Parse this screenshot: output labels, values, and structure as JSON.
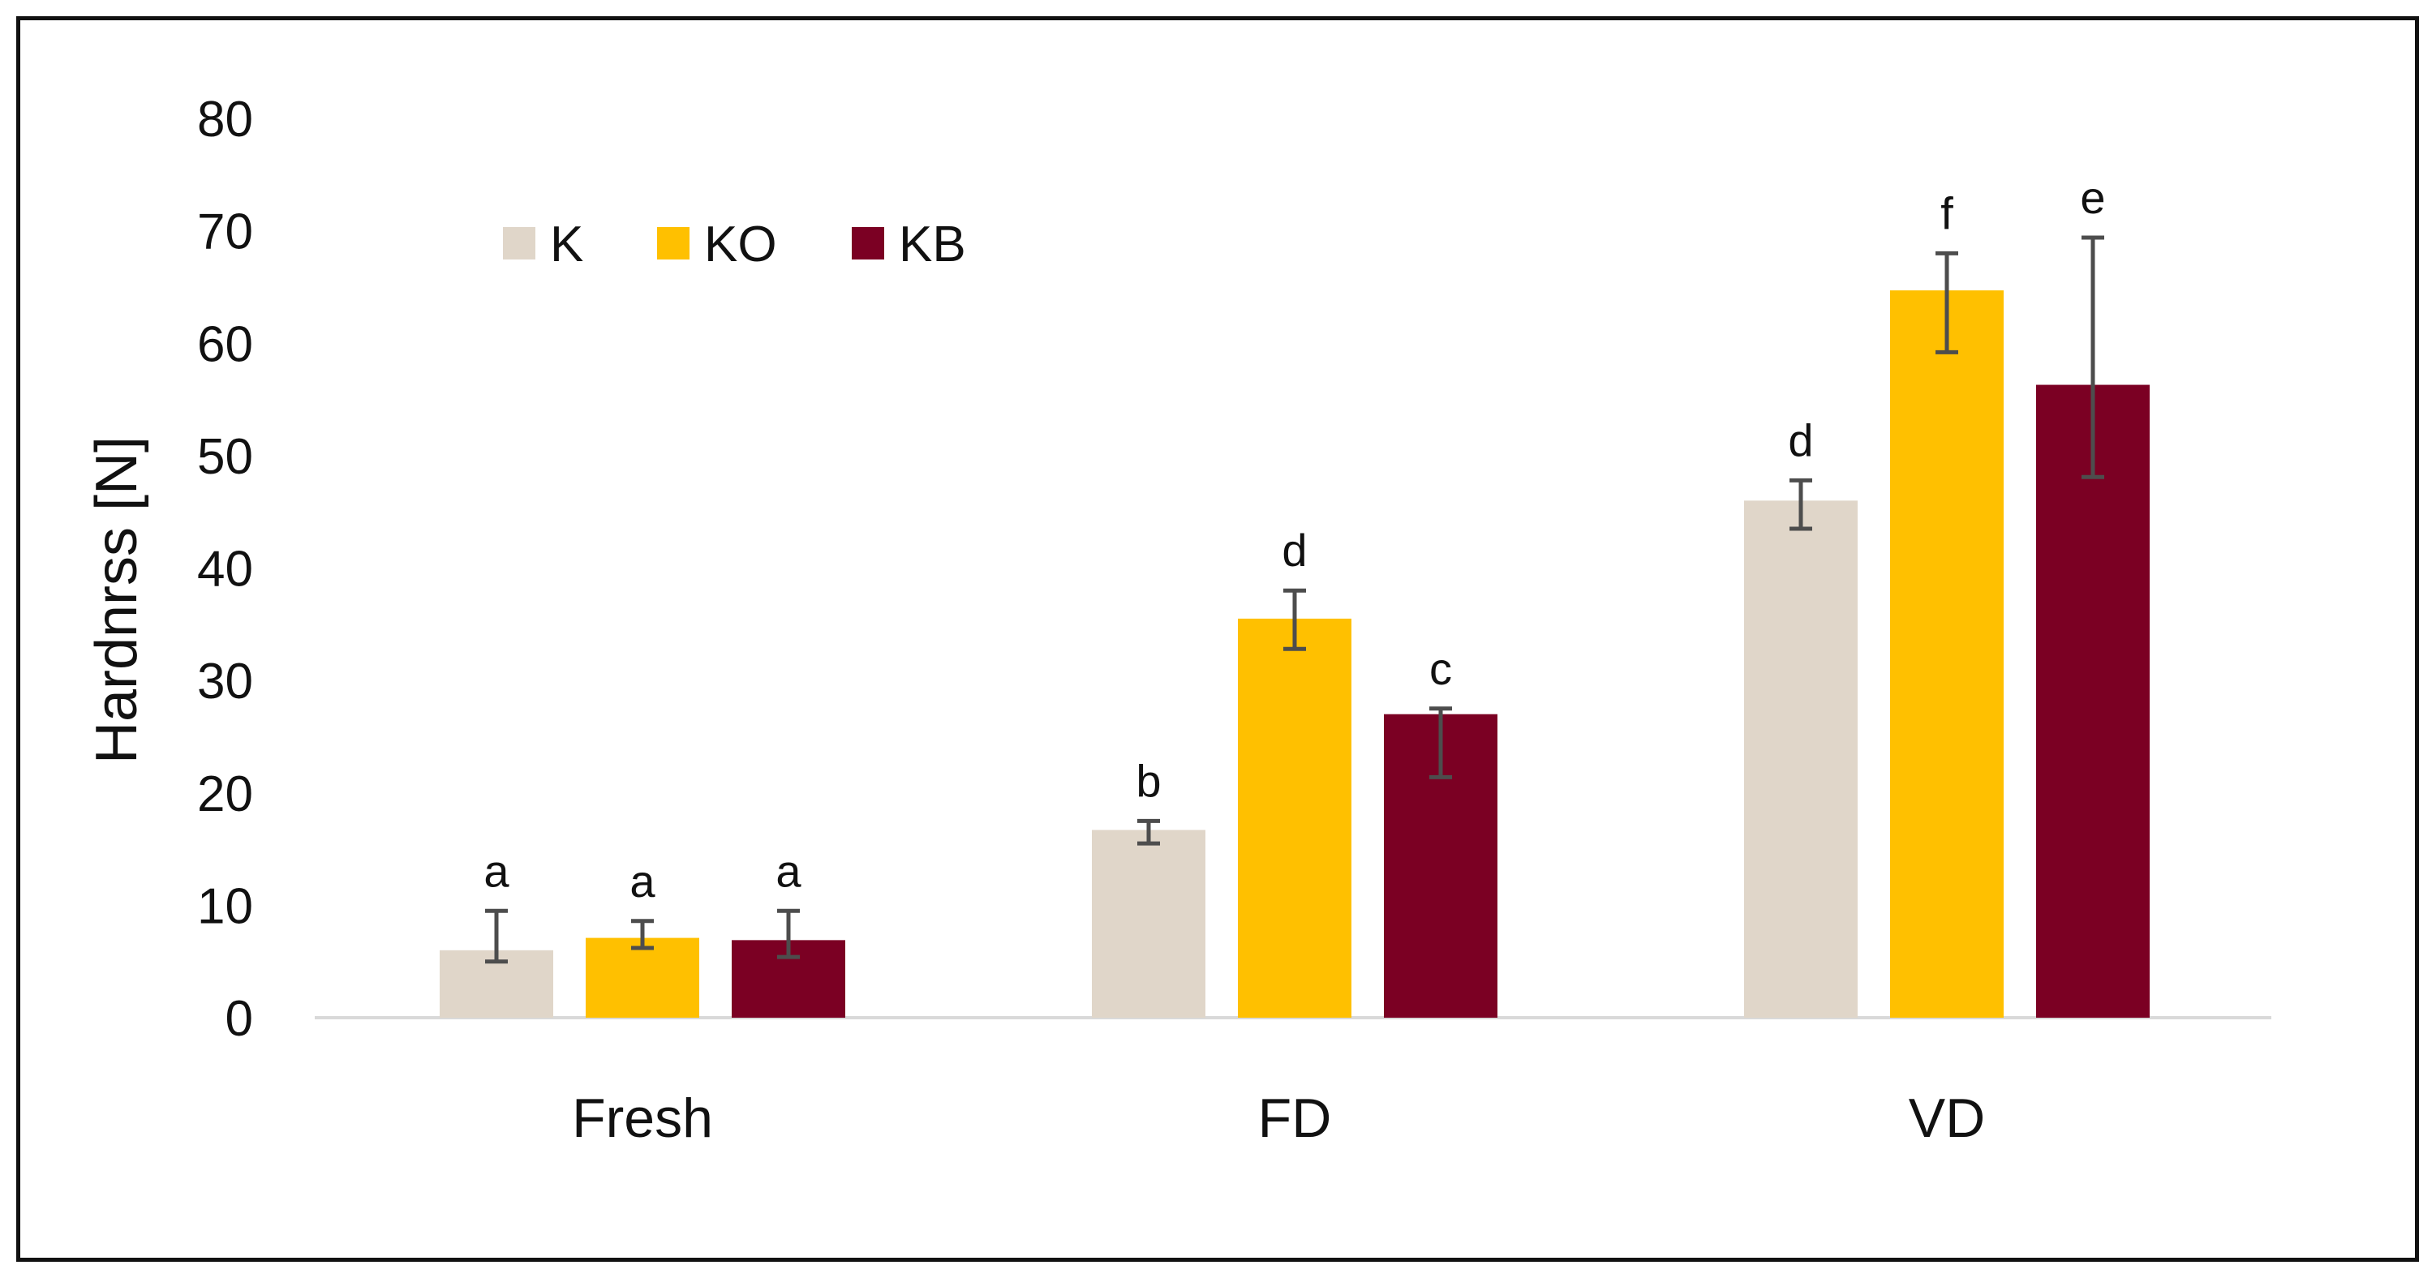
{
  "chart_data": {
    "type": "bar",
    "title": "",
    "xlabel": "",
    "ylabel": "Hardnrss [N]",
    "ylim": [
      0,
      80
    ],
    "yticks": [
      0,
      10,
      20,
      30,
      40,
      50,
      60,
      70,
      80
    ],
    "grid": false,
    "legend_position": "top-left",
    "categories": [
      "Fresh",
      "FD",
      "VD"
    ],
    "series": [
      {
        "name": "K",
        "color": "#e0d6c9",
        "values": [
          6.0,
          16.7,
          46.0
        ],
        "errors": [
          [
            5.0,
            9.5
          ],
          [
            15.5,
            17.5
          ],
          [
            43.5,
            47.8
          ]
        ],
        "labels": [
          "a",
          "b",
          "d"
        ]
      },
      {
        "name": "KO",
        "color": "#ffc000",
        "values": [
          7.1,
          35.5,
          64.7
        ],
        "errors": [
          [
            6.2,
            8.6
          ],
          [
            32.8,
            38.0
          ],
          [
            59.2,
            68.0
          ]
        ],
        "labels": [
          "a",
          "d",
          "f"
        ]
      },
      {
        "name": "KB",
        "color": "#7b0023",
        "values": [
          6.9,
          27.0,
          56.3
        ],
        "errors": [
          [
            5.4,
            9.5
          ],
          [
            21.4,
            27.5
          ],
          [
            48.1,
            69.4
          ]
        ],
        "labels": [
          "a",
          "c",
          "e"
        ]
      }
    ],
    "error_bar_color": "#4d4d4d",
    "axis_color": "#d9d9d9"
  }
}
